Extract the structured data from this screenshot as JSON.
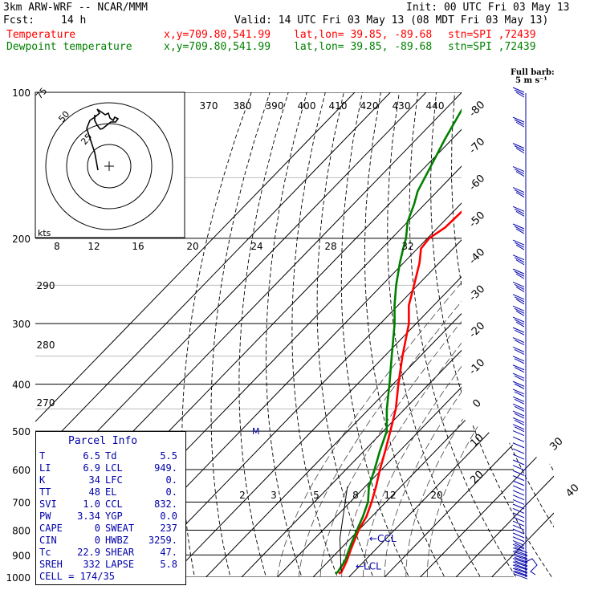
{
  "header": {
    "model": "3km ARW-WRF -- NCAR/MMM",
    "init": "Init: 00 UTC Fri 03 May 13",
    "fcst_label": "Fcst:",
    "fcst_value": "14 h",
    "valid": "Valid: 14 UTC Fri 03 May 13 (08 MDT Fri 03 May 13)",
    "temp_label": "Temperature",
    "dew_label": "Dewpoint temperature",
    "xy": "x,y=709.80,541.99",
    "latlon": "lat,lon= 39.85, -89.68",
    "stn": "stn=SPI ,72439"
  },
  "barb_note": {
    "line1": "Full barb:",
    "line2": "5 m s⁻¹"
  },
  "hodo": {
    "kts_label": "kts",
    "ring_labels": [
      "75",
      "50",
      "25"
    ]
  },
  "parcel": {
    "title": "Parcel Info",
    "rows": [
      {
        "l1": "T",
        "v1": "6.5",
        "l2": "Td",
        "v2": "5.5"
      },
      {
        "l1": "LI",
        "v1": "6.9",
        "l2": "LCL",
        "v2": "949."
      },
      {
        "l1": "K",
        "v1": "34",
        "l2": "LFC",
        "v2": "0."
      },
      {
        "l1": "TT",
        "v1": "48",
        "l2": "EL",
        "v2": "0."
      },
      {
        "l1": "SVI",
        "v1": "1.0",
        "l2": "CCL",
        "v2": "832."
      },
      {
        "l1": "PW",
        "v1": "3.34",
        "l2": "YGP",
        "v2": "0.0"
      },
      {
        "l1": "CAPE",
        "v1": "0",
        "l2": "SWEAT",
        "v2": "237"
      },
      {
        "l1": "CIN",
        "v1": "0",
        "l2": "HWBZ",
        "v2": "3259."
      },
      {
        "l1": "Tc",
        "v1": "22.9",
        "l2": "SHEAR",
        "v2": "47."
      },
      {
        "l1": "SREH",
        "v1": "332",
        "l2": "LAPSE",
        "v2": "5.8"
      }
    ],
    "cell": "CELL = 174/35"
  },
  "chart_data": {
    "type": "line",
    "title": "",
    "pressure_ticks": [
      100,
      200,
      300,
      400,
      500,
      600,
      700,
      800,
      900,
      1000
    ],
    "temp_ticks": [
      -80,
      -70,
      -60,
      -50,
      -40,
      -30,
      -20,
      -10,
      0,
      10,
      20,
      30,
      40
    ],
    "theta_labels": [
      {
        "v": "370",
        "p": 130
      },
      {
        "v": "380",
        "p": 130
      },
      {
        "v": "390",
        "p": 130
      },
      {
        "v": "400",
        "p": 130
      },
      {
        "v": "410",
        "p": 130
      },
      {
        "v": "420",
        "p": 130
      },
      {
        "v": "430",
        "p": 130
      },
      {
        "v": "440",
        "p": 130
      },
      {
        "v": "290",
        "p": 260
      },
      {
        "v": "280",
        "p": 335
      },
      {
        "v": "270",
        "p": 455
      }
    ],
    "mixing_ratio_labels_upper": [
      "8",
      "12",
      "16",
      "20",
      "24",
      "28",
      "32"
    ],
    "mixing_ratio_labels_lower": [
      "2",
      "3",
      "5",
      "8",
      "12",
      "20"
    ],
    "series": [
      {
        "name": "Temperature",
        "color": "#ff0000",
        "points": [
          {
            "p": 984,
            "t": 6.3
          },
          {
            "p": 975,
            "t": 6.5
          },
          {
            "p": 950,
            "t": 5.8
          },
          {
            "p": 925,
            "t": 5.0
          },
          {
            "p": 900,
            "t": 4.0
          },
          {
            "p": 875,
            "t": 3.0
          },
          {
            "p": 850,
            "t": 2.0
          },
          {
            "p": 800,
            "t": 0.0
          },
          {
            "p": 750,
            "t": -1.5
          },
          {
            "p": 700,
            "t": -4.0
          },
          {
            "p": 650,
            "t": -7.0
          },
          {
            "p": 600,
            "t": -10.5
          },
          {
            "p": 550,
            "t": -14.0
          },
          {
            "p": 500,
            "t": -18.0
          },
          {
            "p": 450,
            "t": -22.5
          },
          {
            "p": 400,
            "t": -28.5
          },
          {
            "p": 350,
            "t": -35.0
          },
          {
            "p": 300,
            "t": -42.0
          },
          {
            "p": 275,
            "t": -47.0
          },
          {
            "p": 250,
            "t": -51.0
          },
          {
            "p": 225,
            "t": -55.5
          },
          {
            "p": 210,
            "t": -59.0
          },
          {
            "p": 200,
            "t": -59.5
          },
          {
            "p": 190,
            "t": -58.0
          },
          {
            "p": 170,
            "t": -57.5
          },
          {
            "p": 150,
            "t": -58.0
          },
          {
            "p": 125,
            "t": -60.0
          },
          {
            "p": 110,
            "t": -62.0
          },
          {
            "p": 100,
            "t": -64.0
          }
        ]
      },
      {
        "name": "Dewpoint temperature",
        "color": "#008000",
        "points": [
          {
            "p": 984,
            "t": 5.3
          },
          {
            "p": 975,
            "t": 5.5
          },
          {
            "p": 950,
            "t": 5.0
          },
          {
            "p": 925,
            "t": 4.5
          },
          {
            "p": 900,
            "t": 3.5
          },
          {
            "p": 875,
            "t": 2.5
          },
          {
            "p": 850,
            "t": 1.5
          },
          {
            "p": 800,
            "t": -0.5
          },
          {
            "p": 750,
            "t": -2.5
          },
          {
            "p": 700,
            "t": -5.0
          },
          {
            "p": 650,
            "t": -9.0
          },
          {
            "p": 600,
            "t": -12.0
          },
          {
            "p": 550,
            "t": -15.5
          },
          {
            "p": 500,
            "t": -19.0
          },
          {
            "p": 450,
            "t": -25.0
          },
          {
            "p": 400,
            "t": -31.0
          },
          {
            "p": 350,
            "t": -38.0
          },
          {
            "p": 300,
            "t": -46.0
          },
          {
            "p": 275,
            "t": -51.0
          },
          {
            "p": 250,
            "t": -56.0
          },
          {
            "p": 225,
            "t": -61.0
          },
          {
            "p": 210,
            "t": -64.0
          },
          {
            "p": 200,
            "t": -66.0
          },
          {
            "p": 185,
            "t": -70.0
          },
          {
            "p": 170,
            "t": -73.0
          },
          {
            "p": 160,
            "t": -75.5
          },
          {
            "p": 140,
            "t": -79.0
          },
          {
            "p": 125,
            "t": -82.0
          },
          {
            "p": 110,
            "t": -85.0
          },
          {
            "p": 100,
            "t": -87.0
          }
        ]
      }
    ],
    "annotations": [
      "CCL",
      "LCL"
    ],
    "xlabel": "",
    "ylabel": ""
  }
}
